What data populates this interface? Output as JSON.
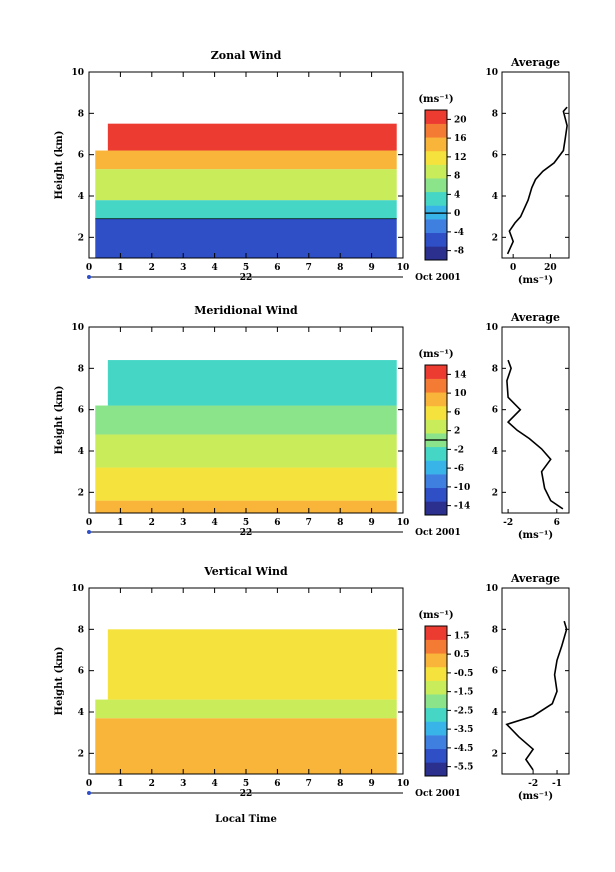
{
  "figure": {
    "xlabel": "Local Time",
    "date_label": "Oct 2001",
    "day_label": "22"
  },
  "colorscale": [
    "#2b2f8e",
    "#2f4fc7",
    "#3f7fe0",
    "#39b4e8",
    "#45d6c6",
    "#8be38a",
    "#c8ec5a",
    "#f5e23c",
    "#f9b53a",
    "#f47b33",
    "#ec3b30"
  ],
  "chart_data": [
    {
      "type": "heatmap",
      "title": "Zonal Wind",
      "ylabel": "Height (km)",
      "units": "(ms⁻¹)",
      "xlim": [
        0,
        10
      ],
      "ylim": [
        1,
        10
      ],
      "x_ticks": [
        "0",
        "1",
        "2",
        "3",
        "4",
        "5",
        "6",
        "7",
        "8",
        "9",
        "10"
      ],
      "y_ticks": [
        "2",
        "4",
        "6",
        "8",
        "10"
      ],
      "colorbar_ticks": [
        "20",
        "16",
        "12",
        "8",
        "4",
        "0",
        "-4",
        "-8"
      ],
      "colorbar_range": [
        -10,
        22
      ],
      "zero_contour": 0,
      "bands": [
        {
          "from_km": 1.0,
          "to_km": 2.9,
          "value": -7
        },
        {
          "from_km": 2.9,
          "to_km": 3.8,
          "value": 2
        },
        {
          "from_km": 3.8,
          "to_km": 5.3,
          "value": 10
        },
        {
          "from_km": 5.3,
          "to_km": 6.2,
          "value": 16
        },
        {
          "from_km": 6.2,
          "to_km": 7.5,
          "value": 21
        }
      ],
      "profile": {
        "title": "Average",
        "xlabel": "(ms⁻¹)",
        "x_ticks": [
          "0",
          "20"
        ],
        "xlim": [
          -6,
          30
        ],
        "points": [
          [
            -3,
            1.2
          ],
          [
            0,
            1.8
          ],
          [
            -2,
            2.3
          ],
          [
            1,
            2.7
          ],
          [
            4,
            3.0
          ],
          [
            8,
            3.8
          ],
          [
            10,
            4.4
          ],
          [
            12,
            4.8
          ],
          [
            16,
            5.2
          ],
          [
            22,
            5.6
          ],
          [
            27,
            6.2
          ],
          [
            28,
            6.8
          ],
          [
            29,
            7.4
          ],
          [
            27,
            8.1
          ],
          [
            29,
            8.3
          ]
        ]
      }
    },
    {
      "type": "heatmap",
      "title": "Meridional Wind",
      "ylabel": "Height (km)",
      "units": "(ms⁻¹)",
      "xlim": [
        0,
        10
      ],
      "ylim": [
        1,
        10
      ],
      "x_ticks": [
        "0",
        "1",
        "2",
        "3",
        "4",
        "5",
        "6",
        "7",
        "8",
        "9",
        "10"
      ],
      "y_ticks": [
        "2",
        "4",
        "6",
        "8",
        "10"
      ],
      "colorbar_ticks": [
        "14",
        "10",
        "6",
        "2",
        "-2",
        "-6",
        "-10",
        "-14"
      ],
      "colorbar_range": [
        -16,
        16
      ],
      "zero_contour": 0,
      "bands": [
        {
          "from_km": 1.0,
          "to_km": 1.6,
          "value": 10
        },
        {
          "from_km": 1.6,
          "to_km": 3.2,
          "value": 7
        },
        {
          "from_km": 3.2,
          "to_km": 4.8,
          "value": 3
        },
        {
          "from_km": 4.8,
          "to_km": 6.2,
          "value": 0
        },
        {
          "from_km": 6.2,
          "to_km": 8.4,
          "value": -4
        }
      ],
      "profile": {
        "title": "Average",
        "xlabel": "(ms⁻¹)",
        "x_ticks": [
          "-2",
          "6"
        ],
        "xlim": [
          -3,
          8
        ],
        "points": [
          [
            7,
            1.2
          ],
          [
            5,
            1.6
          ],
          [
            4,
            2.2
          ],
          [
            3.5,
            3.0
          ],
          [
            5,
            3.6
          ],
          [
            3.5,
            4.1
          ],
          [
            1.5,
            4.6
          ],
          [
            -0.5,
            5.0
          ],
          [
            -2,
            5.4
          ],
          [
            0,
            6.0
          ],
          [
            -2,
            6.6
          ],
          [
            -2.2,
            7.4
          ],
          [
            -1.5,
            8.0
          ],
          [
            -2,
            8.4
          ]
        ]
      }
    },
    {
      "type": "heatmap",
      "title": "Vertical Wind",
      "ylabel": "Height (km)",
      "units": "(ms⁻¹)",
      "xlim": [
        0,
        10
      ],
      "ylim": [
        1,
        10
      ],
      "x_ticks": [
        "0",
        "1",
        "2",
        "3",
        "4",
        "5",
        "6",
        "7",
        "8",
        "9",
        "10"
      ],
      "y_ticks": [
        "2",
        "4",
        "6",
        "8",
        "10"
      ],
      "colorbar_ticks": [
        "1.5",
        "0.5",
        "-0.5",
        "-1.5",
        "-2.5",
        "-3.5",
        "-4.5",
        "-5.5"
      ],
      "colorbar_range": [
        -6,
        2
      ],
      "zero_contour": null,
      "bands": [
        {
          "from_km": 1.0,
          "to_km": 3.7,
          "value": 0.5
        },
        {
          "from_km": 3.7,
          "to_km": 4.6,
          "value": -1.0
        },
        {
          "from_km": 4.6,
          "to_km": 8.0,
          "value": -0.4
        }
      ],
      "profile": {
        "title": "Average",
        "xlabel": "(ms⁻¹)",
        "x_ticks": [
          "-2",
          "-1"
        ],
        "xlim": [
          -3.3,
          -0.5
        ],
        "points": [
          [
            -2.0,
            1.2
          ],
          [
            -2.3,
            1.7
          ],
          [
            -2.0,
            2.2
          ],
          [
            -2.6,
            2.8
          ],
          [
            -3.1,
            3.4
          ],
          [
            -2.0,
            3.8
          ],
          [
            -1.2,
            4.4
          ],
          [
            -1.0,
            5.0
          ],
          [
            -1.1,
            5.8
          ],
          [
            -1.0,
            6.5
          ],
          [
            -0.8,
            7.2
          ],
          [
            -0.6,
            8.0
          ],
          [
            -0.7,
            8.4
          ]
        ]
      }
    }
  ]
}
